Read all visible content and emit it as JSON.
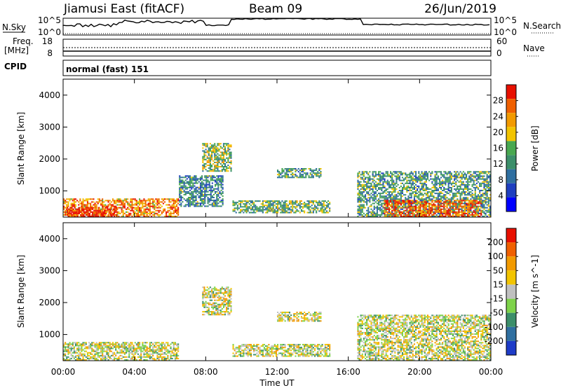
{
  "header": {
    "radar": "Jiamusi East (fitACF)",
    "beam": "Beam 09",
    "date": "26/Jun/2019"
  },
  "noise_panel": {
    "left_label": "N.Sky",
    "right_label": "N.Search",
    "left_ticks": [
      "10^5",
      "10^0"
    ],
    "right_ticks": [
      "10^5",
      "10^0"
    ]
  },
  "freq_panel": {
    "left_label_top": "Freq.",
    "left_label_unit": "[MHz]",
    "right_label": "Nave",
    "left_ticks": [
      "18",
      "8"
    ],
    "right_ticks": [
      "60",
      "0"
    ]
  },
  "cpid": {
    "label": "CPID",
    "value": "normal (fast) 151"
  },
  "chart_data": [
    {
      "type": "heatmap",
      "title": "",
      "xlabel": "Time UT",
      "ylabel": "Slant Range [km]",
      "x_ticks": [
        "00:00",
        "04:00",
        "08:00",
        "12:00",
        "16:00",
        "20:00",
        "00:00"
      ],
      "y_ticks": [
        "1000",
        "2000",
        "3000",
        "4000"
      ],
      "ylim": [
        180,
        4500
      ],
      "xlim_hours": [
        0,
        24
      ],
      "colorbar": {
        "label": "Power [dB]",
        "ticks": [
          "4",
          "8",
          "12",
          "16",
          "20",
          "24",
          "28"
        ],
        "range": [
          0,
          32
        ],
        "colors": [
          "#0000ff",
          "#1f3fc0",
          "#2f6fa0",
          "#3c8f6a",
          "#48a850",
          "#f2c400",
          "#f29a00",
          "#f06000",
          "#e81000"
        ]
      },
      "regions": [
        {
          "t0": 0.0,
          "t1": 6.5,
          "r0": 180,
          "r1": 750,
          "level": 0.75
        },
        {
          "t0": 0.2,
          "t1": 3.0,
          "r0": 180,
          "r1": 500,
          "level": 0.95
        },
        {
          "t0": 6.5,
          "t1": 9.0,
          "r0": 500,
          "r1": 1500,
          "level": 0.35
        },
        {
          "t0": 7.8,
          "t1": 9.5,
          "r0": 1600,
          "r1": 2500,
          "level": 0.5
        },
        {
          "t0": 9.5,
          "t1": 15.0,
          "r0": 300,
          "r1": 700,
          "level": 0.45
        },
        {
          "t0": 12.0,
          "t1": 14.5,
          "r0": 1400,
          "r1": 1700,
          "level": 0.4
        },
        {
          "t0": 16.5,
          "t1": 24.0,
          "r0": 180,
          "r1": 1600,
          "level": 0.4
        },
        {
          "t0": 18.0,
          "t1": 23.5,
          "r0": 180,
          "r1": 700,
          "level": 0.85
        }
      ]
    },
    {
      "type": "heatmap",
      "title": "",
      "xlabel": "Time UT",
      "ylabel": "Slant Range [km]",
      "x_ticks": [
        "00:00",
        "04:00",
        "08:00",
        "12:00",
        "16:00",
        "20:00",
        "00:00"
      ],
      "y_ticks": [
        "1000",
        "2000",
        "3000",
        "4000"
      ],
      "ylim": [
        180,
        4500
      ],
      "xlim_hours": [
        0,
        24
      ],
      "colorbar": {
        "label": "Velocity [m s^-1]",
        "ticks": [
          "200",
          "100",
          "50",
          "15",
          "-15",
          "-50",
          "-100",
          "-200"
        ],
        "range": [
          -250,
          250
        ],
        "colors": [
          "#1e3cc8",
          "#2f6fa0",
          "#3c8f6a",
          "#7ed34a",
          "#c0c0c0",
          "#f2c400",
          "#f29a00",
          "#f06000",
          "#e81000"
        ]
      },
      "regions": [
        {
          "t0": 0.0,
          "t1": 6.5,
          "r0": 180,
          "r1": 750,
          "level": 0.5
        },
        {
          "t0": 7.8,
          "t1": 9.5,
          "r0": 1600,
          "r1": 2500,
          "level": 0.5
        },
        {
          "t0": 9.5,
          "t1": 15.0,
          "r0": 300,
          "r1": 700,
          "level": 0.35
        },
        {
          "t0": 12.0,
          "t1": 14.5,
          "r0": 1400,
          "r1": 1700,
          "level": 0.5
        },
        {
          "t0": 16.5,
          "t1": 24.0,
          "r0": 180,
          "r1": 1600,
          "level": 0.5
        }
      ]
    }
  ]
}
